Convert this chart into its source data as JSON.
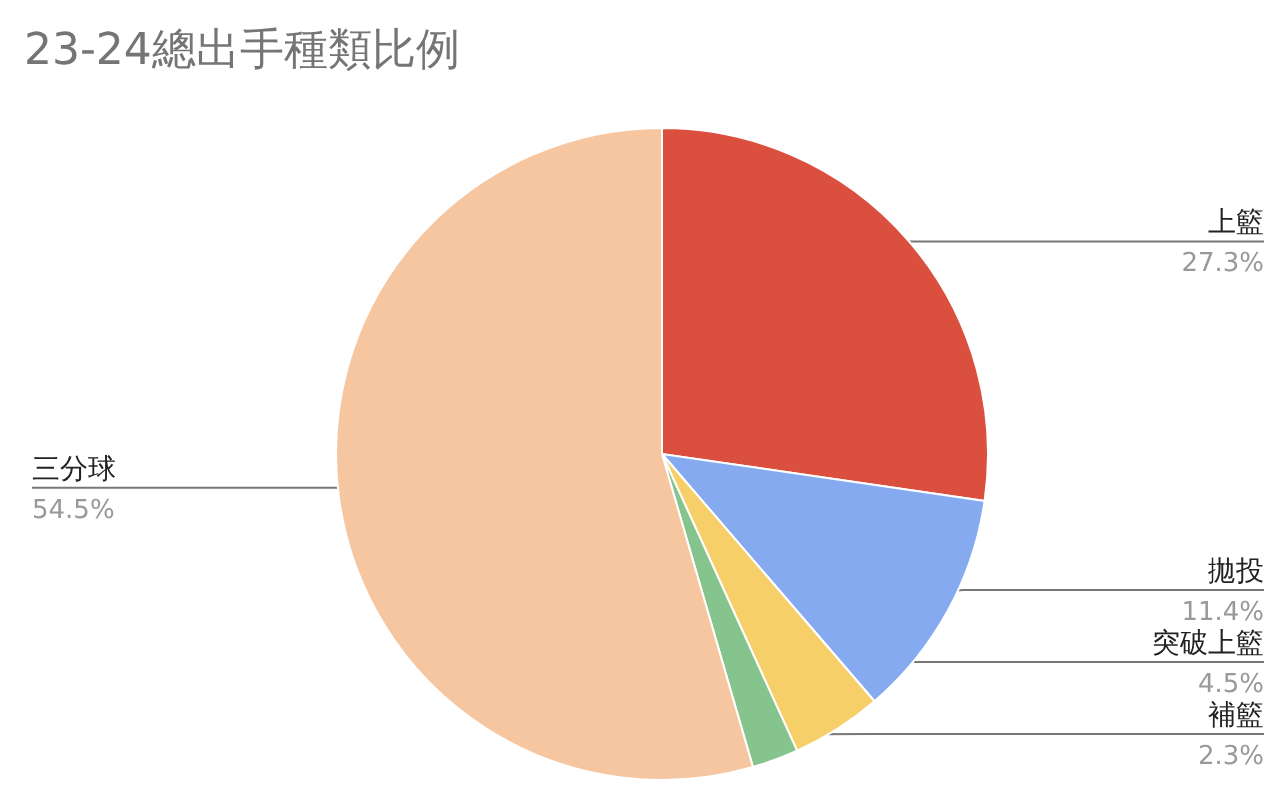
{
  "chart_data": {
    "type": "pie",
    "title": "23-24總出手種類比例",
    "categories": [
      "上籃",
      "拋投",
      "突破上籃",
      "補籃",
      "三分球"
    ],
    "values": [
      27.3,
      11.4,
      4.5,
      2.3,
      54.5
    ],
    "colors": [
      "#db4f3f",
      "#86aaf0",
      "#f6cf69",
      "#86c48e",
      "#f6c6a0"
    ],
    "value_labels": [
      "27.3%",
      "11.4%",
      "4.5%",
      "2.3%",
      "54.5%"
    ],
    "legend": false
  }
}
